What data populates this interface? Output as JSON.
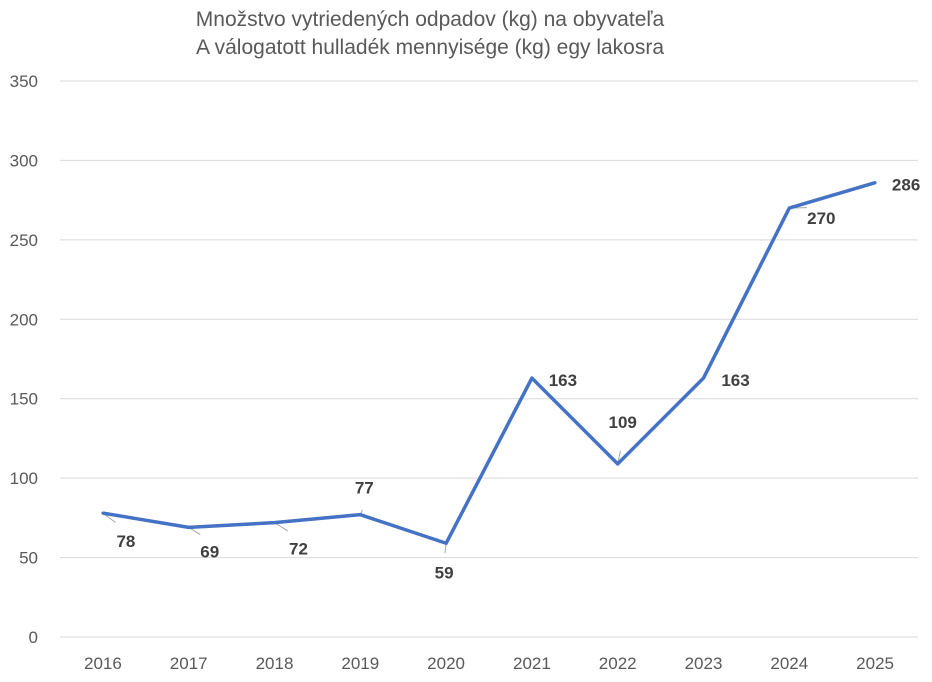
{
  "chart_data": {
    "type": "line",
    "title": "Množstvo vytriedených odpadov (kg) na obyvateľa",
    "subtitle": "A válogatott hulladék mennyisége (kg) egy lakosra",
    "xlabel": "",
    "ylabel": "",
    "categories": [
      "2016",
      "2017",
      "2018",
      "2019",
      "2020",
      "2021",
      "2022",
      "2023",
      "2024",
      "2025"
    ],
    "values": [
      78,
      69,
      72,
      77,
      59,
      163,
      109,
      163,
      270,
      286
    ],
    "ylim": [
      0,
      350
    ],
    "yticks": [
      0,
      50,
      100,
      150,
      200,
      250,
      300,
      350
    ],
    "grid": true,
    "legend": "none",
    "line_color": "#4472C4",
    "grid_color": "#D9D9D9"
  }
}
